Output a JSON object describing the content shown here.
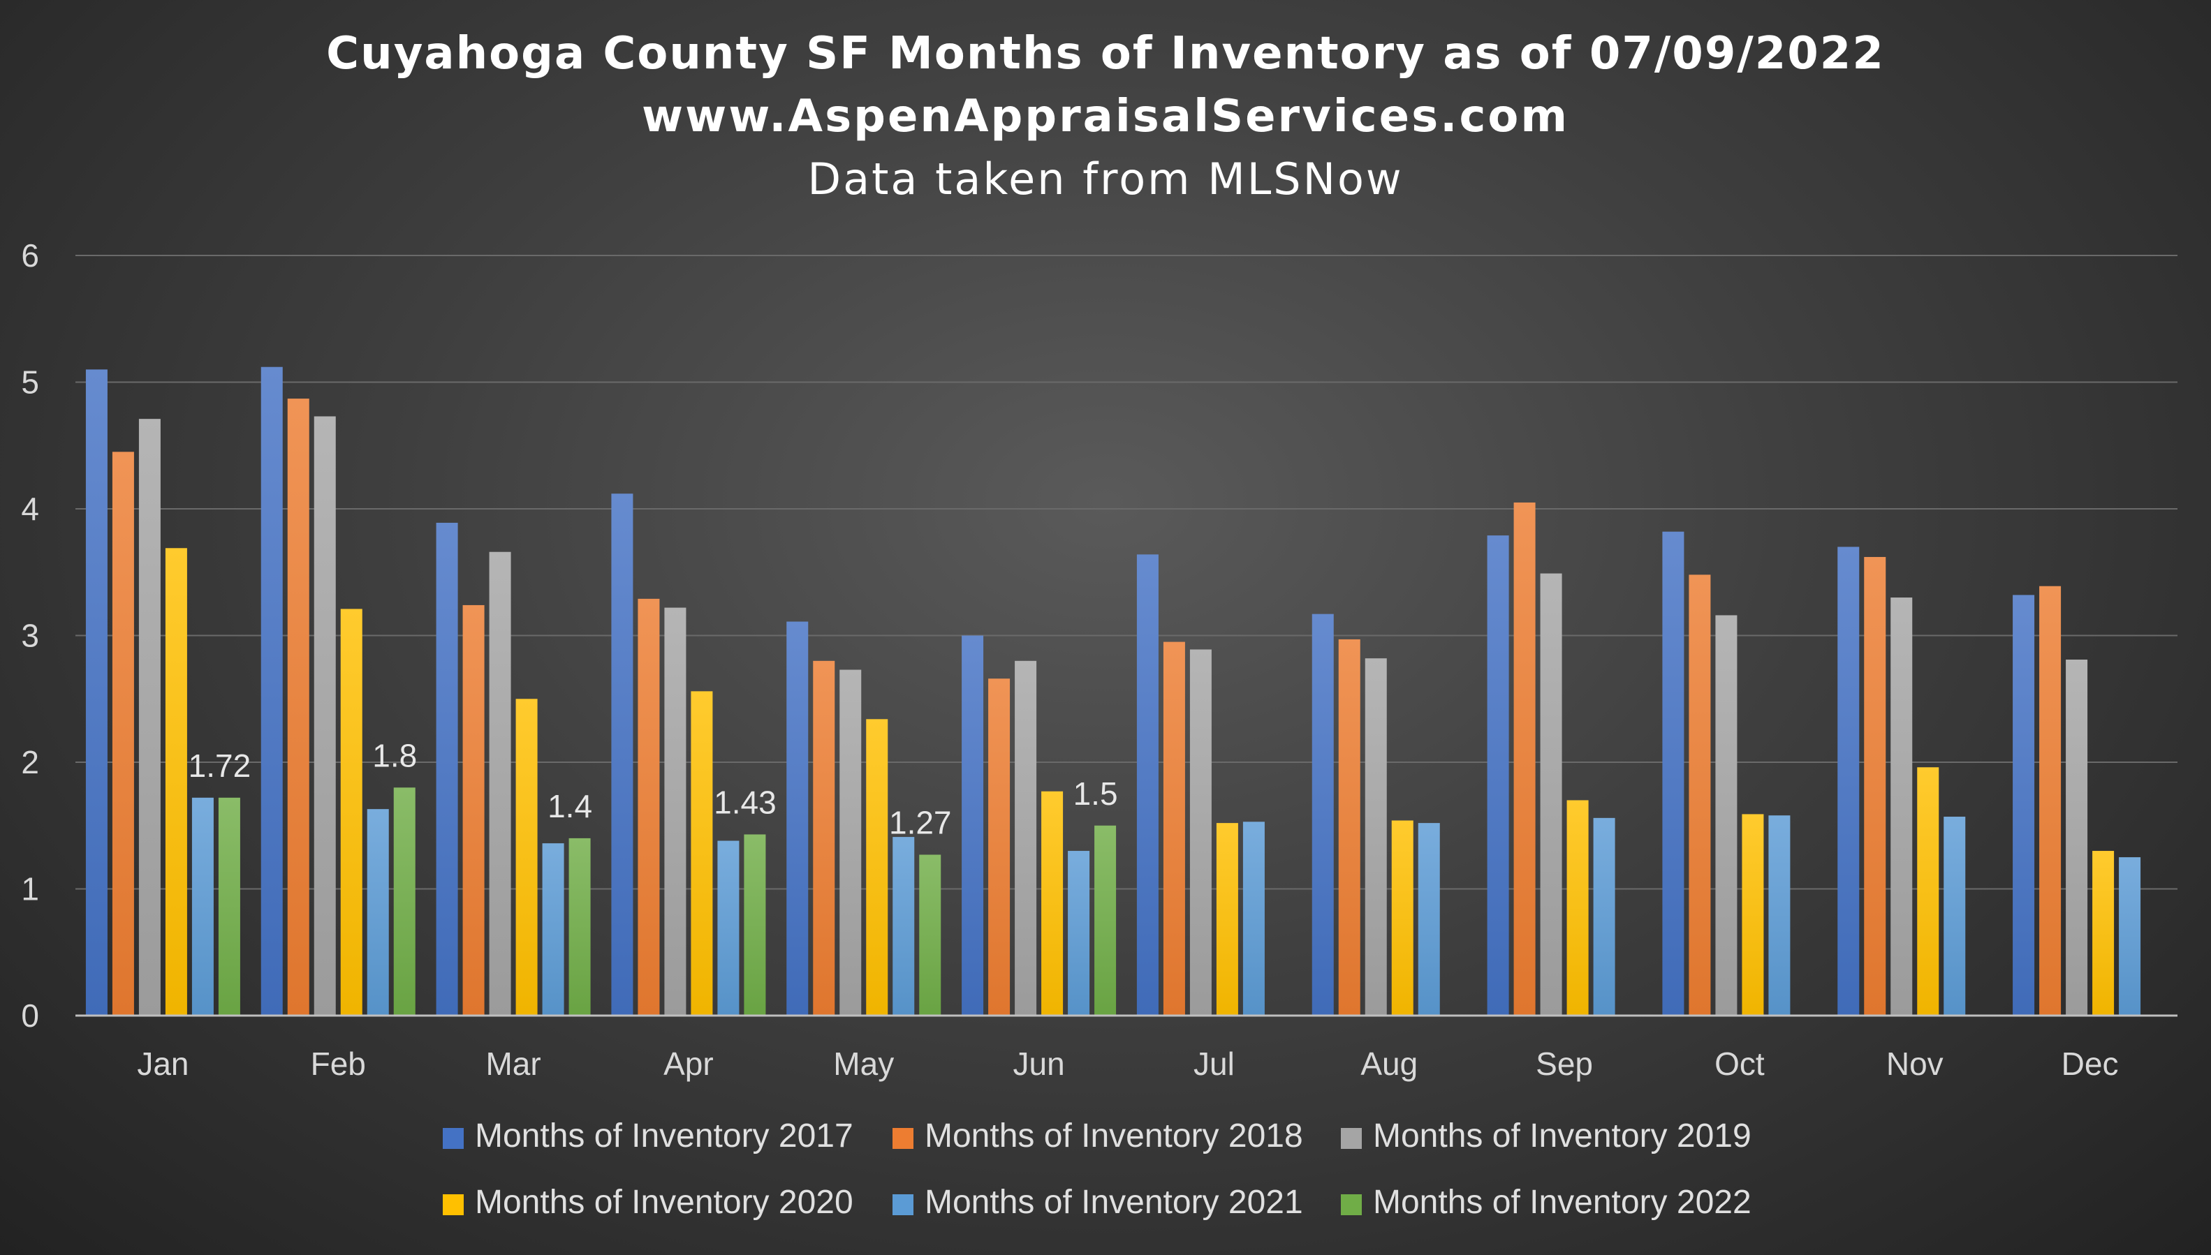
{
  "chart_data": {
    "type": "bar",
    "title": "Cuyahoga County SF Months of Inventory as of 07/09/2022",
    "subtitle": "www.AspenAppraisalServices.com",
    "subtitle2": "Data taken from MLSNow",
    "xlabel": "",
    "ylabel": "",
    "ylim": [
      0,
      6
    ],
    "yticks": [
      "0",
      "1",
      "2",
      "3",
      "4",
      "5",
      "6"
    ],
    "grid": true,
    "legend_position": "bottom",
    "categories": [
      "Jan",
      "Feb",
      "Mar",
      "Apr",
      "May",
      "Jun",
      "Jul",
      "Aug",
      "Sep",
      "Oct",
      "Nov",
      "Dec"
    ],
    "series": [
      {
        "name": "Months of Inventory 2017",
        "color": "#4472c4",
        "values": [
          5.1,
          5.12,
          3.89,
          4.12,
          3.11,
          3.0,
          3.64,
          3.17,
          3.79,
          3.82,
          3.7,
          3.32
        ]
      },
      {
        "name": "Months of Inventory 2018",
        "color": "#ed7d31",
        "values": [
          4.45,
          4.87,
          3.24,
          3.29,
          2.8,
          2.66,
          2.95,
          2.97,
          4.05,
          3.48,
          3.62,
          3.39
        ]
      },
      {
        "name": "Months of Inventory 2019",
        "color": "#a5a5a5",
        "values": [
          4.71,
          4.73,
          3.66,
          3.22,
          2.73,
          2.8,
          2.89,
          2.82,
          3.49,
          3.16,
          3.3,
          2.81
        ]
      },
      {
        "name": "Months of Inventory 2020",
        "color": "#ffc000",
        "values": [
          3.69,
          3.21,
          2.5,
          2.56,
          2.34,
          1.77,
          1.52,
          1.54,
          1.7,
          1.59,
          1.96,
          1.3
        ]
      },
      {
        "name": "Months of Inventory 2021",
        "color": "#5b9bd5",
        "values": [
          1.72,
          1.63,
          1.36,
          1.38,
          1.41,
          1.3,
          1.53,
          1.52,
          1.56,
          1.58,
          1.57,
          1.25
        ]
      },
      {
        "name": "Months of Inventory 2022",
        "color": "#70ad47",
        "values": [
          1.72,
          1.8,
          1.4,
          1.43,
          1.27,
          1.5,
          null,
          null,
          null,
          null,
          null,
          null
        ],
        "data_labels": [
          "1.72",
          "1.8",
          "1.4",
          "1.43",
          "1.27",
          "1.5"
        ]
      }
    ]
  }
}
